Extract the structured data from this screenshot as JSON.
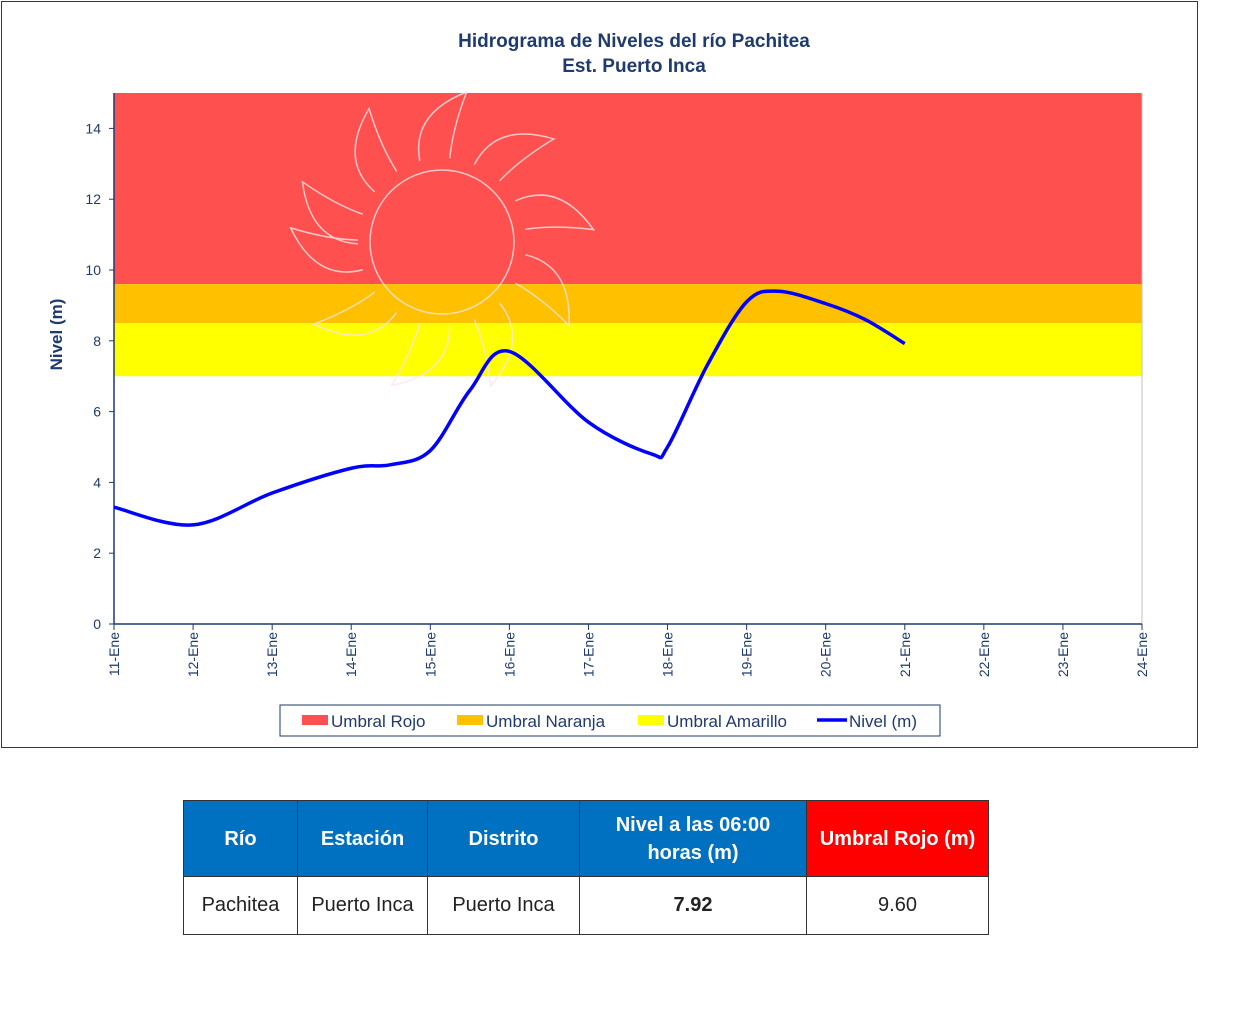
{
  "chart_data": {
    "type": "line",
    "title": "Hidrograma  de Niveles del río Pachitea",
    "subtitle": "Est. Puerto Inca",
    "ylabel": "Nivel (m)",
    "xlabel": "",
    "ylim": [
      0,
      15
    ],
    "yticks": [
      0,
      2,
      4,
      6,
      8,
      10,
      12,
      14
    ],
    "categories": [
      "11-Ene",
      "12-Ene",
      "13-Ene",
      "14-Ene",
      "15-Ene",
      "16-Ene",
      "17-Ene",
      "18-Ene",
      "19-Ene",
      "20-Ene",
      "21-Ene",
      "22-Ene",
      "23-Ene",
      "24-Ene"
    ],
    "bands": [
      {
        "name": "Umbral Rojo",
        "from": 9.6,
        "to": 15,
        "color": "#ff5050"
      },
      {
        "name": "Umbral Naranja",
        "from": 8.5,
        "to": 9.6,
        "color": "#ffc000"
      },
      {
        "name": "Umbral Amarillo",
        "from": 7,
        "to": 8.5,
        "color": "#ffff00"
      }
    ],
    "series": [
      {
        "name": "Nivel (m)",
        "color": "#0000ff",
        "x": [
          0,
          1,
          2,
          3,
          3.5,
          4,
          4.5,
          5,
          6,
          6.8,
          7,
          7.5,
          8,
          8.4,
          9,
          9.5,
          10
        ],
        "values": [
          3.3,
          2.8,
          3.7,
          4.4,
          4.5,
          4.9,
          6.6,
          7.7,
          5.7,
          4.8,
          5.0,
          7.3,
          9.1,
          9.4,
          9.05,
          8.6,
          7.92
        ]
      }
    ],
    "legend_position": "bottom",
    "grid": false
  },
  "table": {
    "headers": [
      "Río",
      "Estación",
      "Distrito",
      "Nivel a las  06:00 horas (m)",
      "Umbral Rojo (m)"
    ],
    "row": [
      "Pachitea",
      "Puerto Inca",
      "Puerto Inca",
      "7.92",
      "9.60"
    ]
  }
}
